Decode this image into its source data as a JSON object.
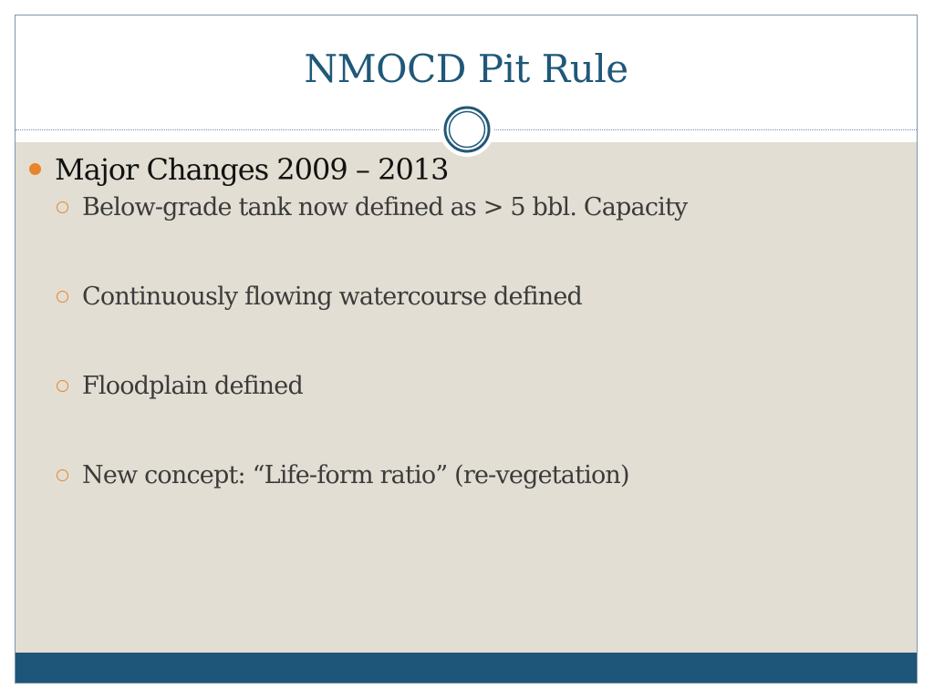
{
  "slide": {
    "title": "NMOCD Pit Rule",
    "bullets": [
      {
        "text": "Major Changes 2009 – 2013",
        "sub_items": [
          "Below-grade tank now defined as > 5 bbl. Capacity",
          "Continuously flowing watercourse defined",
          "Floodplain defined",
          "New concept:  “Life-form ratio” (re-vegetation)"
        ]
      }
    ]
  },
  "theme": {
    "title_color": "#1f5878",
    "body_background": "#e2ded3",
    "footer_color": "#1d5678",
    "bullet_color": "#e8842a",
    "icons": [
      "bullet-dot-icon",
      "sub-bullet-circle-icon",
      "ring-ornament-icon"
    ]
  }
}
